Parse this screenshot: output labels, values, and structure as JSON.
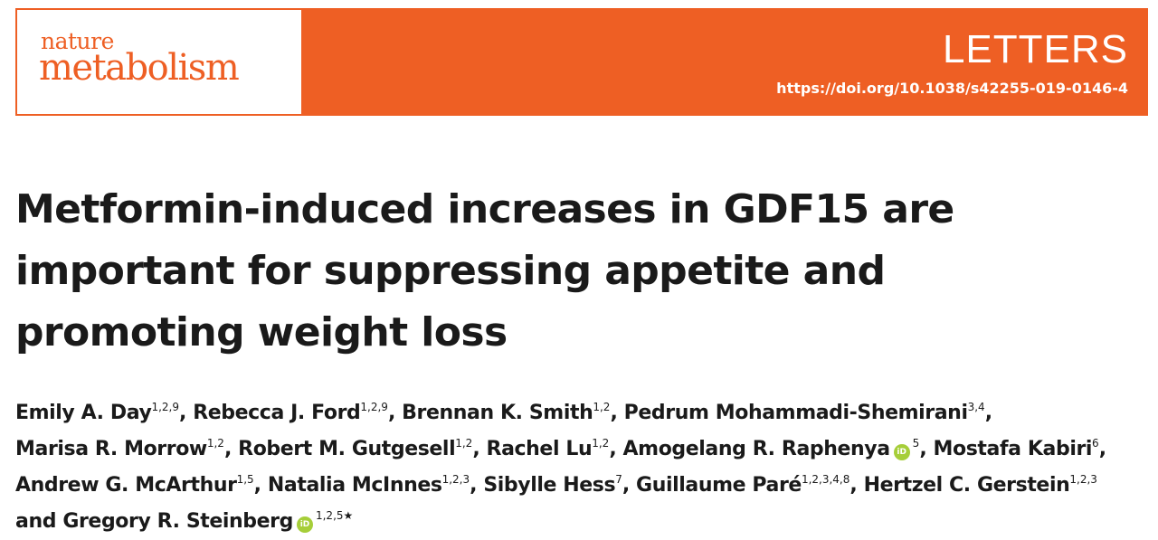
{
  "header": {
    "journal_word_1": "nature",
    "journal_word_2": "metabolism",
    "section": "LETTERS",
    "doi": "https://doi.org/10.1038/s42255-019-0146-4",
    "colors": {
      "brand": "#ee5f24",
      "orcid": "#a6ce39"
    }
  },
  "article": {
    "title_lines": [
      "Metformin-induced increases in GDF15 are",
      "important for suppressing appetite and",
      "promoting weight loss"
    ],
    "authors": [
      {
        "name": "Emily A. Day",
        "affil": "1,2,9",
        "sep": ", "
      },
      {
        "name": "Rebecca J. Ford",
        "affil": "1,2,9",
        "sep": ", "
      },
      {
        "name": "Brennan K. Smith",
        "affil": "1,2",
        "sep": ", "
      },
      {
        "name": "Pedrum Mohammadi-Shemirani",
        "affil": "3,4",
        "sep": ", "
      },
      {
        "name": "Marisa R. Morrow",
        "affil": "1,2",
        "sep": ", "
      },
      {
        "name": "Robert M. Gutgesell",
        "affil": "1,2",
        "sep": ", "
      },
      {
        "name": "Rachel Lu",
        "affil": "1,2",
        "sep": ", "
      },
      {
        "name": "Amogelang R. Raphenya",
        "affil": "5",
        "orcid": "iD",
        "sep": ", "
      },
      {
        "name": "Mostafa Kabiri",
        "affil": "6",
        "sep": ", "
      },
      {
        "name": "Andrew G. McArthur",
        "affil": "1,5",
        "sep": ", "
      },
      {
        "name": "Natalia McInnes",
        "affil": "1,2,3",
        "sep": ", "
      },
      {
        "name": "Sibylle Hess",
        "affil": "7",
        "sep": ", "
      },
      {
        "name": "Guillaume Paré",
        "affil": "1,2,3,4,8",
        "sep": ", "
      },
      {
        "name": "Hertzel C. Gerstein",
        "affil": "1,2,3",
        "sep": " "
      },
      {
        "name": "and Gregory R. Steinberg",
        "affil": "1,2,5★",
        "orcid": "iD",
        "sep": ""
      }
    ]
  }
}
